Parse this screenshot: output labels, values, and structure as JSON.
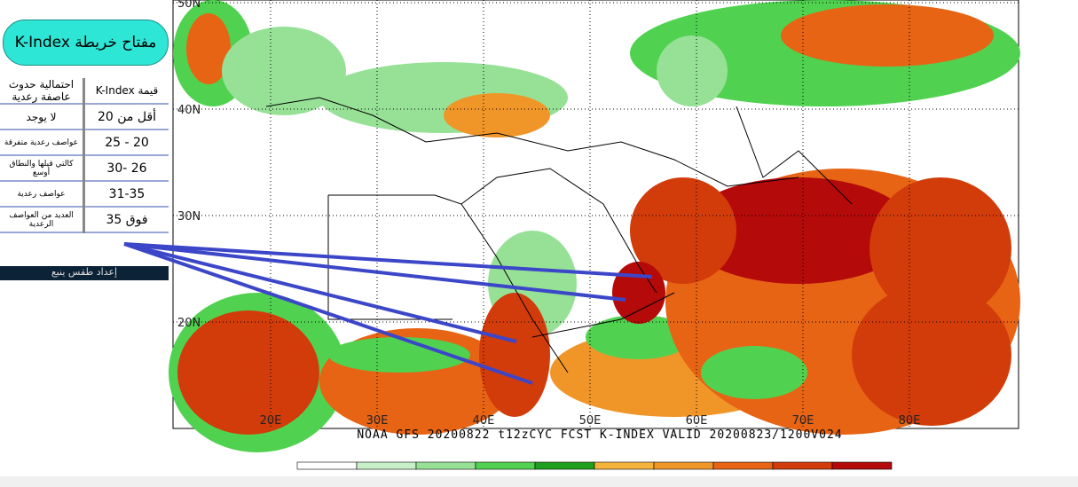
{
  "legend": {
    "title": "مفتاح خريطة K-Index",
    "header": [
      "احتمالية حدوث عاصفة رعدية",
      "قيمة  K-Index"
    ],
    "rows": [
      [
        "لا يوجد",
        "أقل من 20"
      ],
      [
        "عواصف رعدية متفرقة",
        "20 - 25"
      ],
      [
        "كالتي قبلها والنطاق أوسع",
        "26 -30"
      ],
      [
        "عواصف رعدية",
        "31-35"
      ],
      [
        "العديد من العواصف الرعدية",
        "فوق 35"
      ]
    ],
    "credit": "إعداد طقس ينبع"
  },
  "map": {
    "lat_labels": [
      "50N",
      "40N",
      "30N",
      "20N"
    ],
    "lon_labels": [
      "20E",
      "30E",
      "40E",
      "50E",
      "60E",
      "70E",
      "80E"
    ],
    "caption": "NOAA GFS 20200822 t12zCYC FCST K-INDEX    VALID 20200823/1200V024",
    "colorbar": [
      "#ffffff",
      "#c8f0c8",
      "#96e196",
      "#50d250",
      "#1ea01e",
      "#f5b43c",
      "#f09628",
      "#e66414",
      "#d23c0a",
      "#b40a0a"
    ]
  }
}
